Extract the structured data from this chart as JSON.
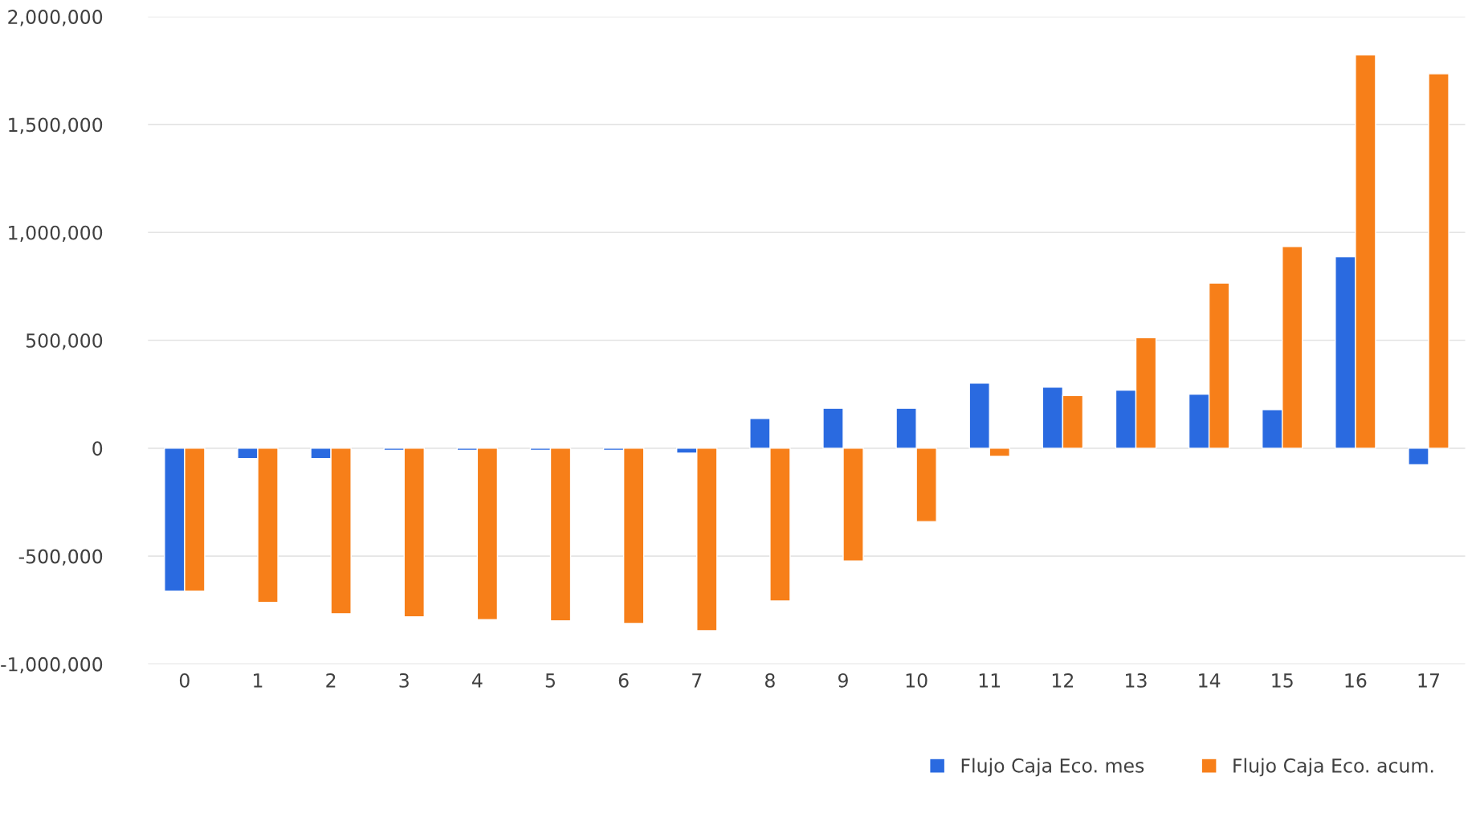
{
  "chart_data": {
    "type": "bar",
    "categories": [
      "0",
      "1",
      "2",
      "3",
      "4",
      "5",
      "6",
      "7",
      "8",
      "9",
      "10",
      "11",
      "12",
      "13",
      "14",
      "15",
      "16",
      "17"
    ],
    "series": [
      {
        "name": "Flujo Caja Eco. mes",
        "color": "#2a6ae0",
        "values": [
          -662000,
          -48000,
          -48000,
          -10000,
          -10000,
          -10000,
          -10000,
          -23000,
          138000,
          185000,
          185000,
          302000,
          283000,
          269000,
          250000,
          179000,
          887000,
          -77000
        ]
      },
      {
        "name": "Flujo Caja Eco. acum.",
        "color": "#f77f19",
        "values": [
          -662000,
          -714000,
          -767000,
          -781000,
          -794000,
          -800000,
          -812000,
          -846000,
          -708000,
          -523000,
          -340000,
          -38000,
          244000,
          512000,
          765000,
          935000,
          1823000,
          1735000
        ]
      }
    ],
    "ylim": [
      -1000000,
      2000000
    ],
    "yticks": [
      {
        "value": -1000000,
        "label": "-1,000,000"
      },
      {
        "value": -500000,
        "label": "-500,000"
      },
      {
        "value": 0,
        "label": "0"
      },
      {
        "value": 500000,
        "label": "500,000"
      },
      {
        "value": 1000000,
        "label": "1,000,000"
      },
      {
        "value": 1500000,
        "label": "1,500,000"
      },
      {
        "value": 2000000,
        "label": "2,000,000"
      }
    ],
    "grid": "y",
    "legend": "bottom right"
  }
}
